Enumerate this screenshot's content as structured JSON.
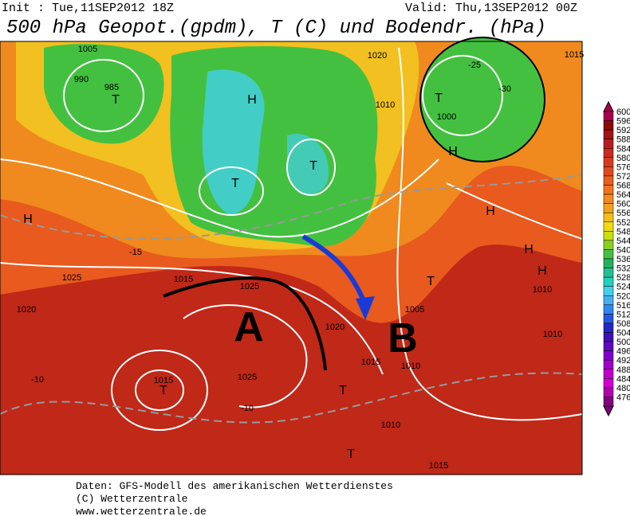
{
  "header": {
    "init": "Init : Tue,11SEP2012 18Z",
    "valid": "Valid: Thu,13SEP2012 00Z",
    "title": "500 hPa Geopot.(gpdm), T (C) und Bodendr. (hPa)"
  },
  "legend": {
    "values": [
      600,
      596,
      592,
      588,
      584,
      580,
      576,
      572,
      568,
      564,
      560,
      556,
      552,
      548,
      544,
      540,
      536,
      532,
      528,
      524,
      520,
      516,
      512,
      508,
      504,
      500,
      496,
      492,
      488,
      484,
      480,
      476
    ],
    "colors": [
      "#a8004c",
      "#8b0a0a",
      "#a01414",
      "#b41e1e",
      "#c82a1e",
      "#d83a1e",
      "#e24a1e",
      "#ea5e1e",
      "#f0741e",
      "#f28a1e",
      "#f2a21e",
      "#f2be1e",
      "#f0dc10",
      "#c8e010",
      "#88d020",
      "#44c040",
      "#22b060",
      "#22c090",
      "#22d0c0",
      "#44d0e8",
      "#44b0f0",
      "#3088f0",
      "#2458e0",
      "#2228c0",
      "#4010b0",
      "#6008c0",
      "#8000c8",
      "#a000c8",
      "#c000c8",
      "#d000d0",
      "#b000b0",
      "#800080"
    ]
  },
  "annotations": {
    "a": "A",
    "b": "B"
  },
  "map_labels": [
    "H",
    "H",
    "H",
    "H",
    "H",
    "H",
    "T",
    "T",
    "T",
    "T",
    "T",
    "T",
    "T",
    "T",
    "1005",
    "990",
    "985",
    "1000",
    "-25",
    "-30",
    "1015",
    "1020",
    "1010",
    "1015",
    "1025",
    "1020",
    "1025",
    "1020",
    "1015",
    "1025",
    "1010",
    "1015",
    "-10",
    "-10",
    "-15",
    "1005",
    "1010",
    "1015",
    "1010",
    "1010"
  ],
  "footer": {
    "line1": "Daten: GFS-Modell des amerikanischen Wetterdienstes",
    "line2": "(C) Wetterzentrale",
    "line3": "www.wetterzentrale.de"
  }
}
